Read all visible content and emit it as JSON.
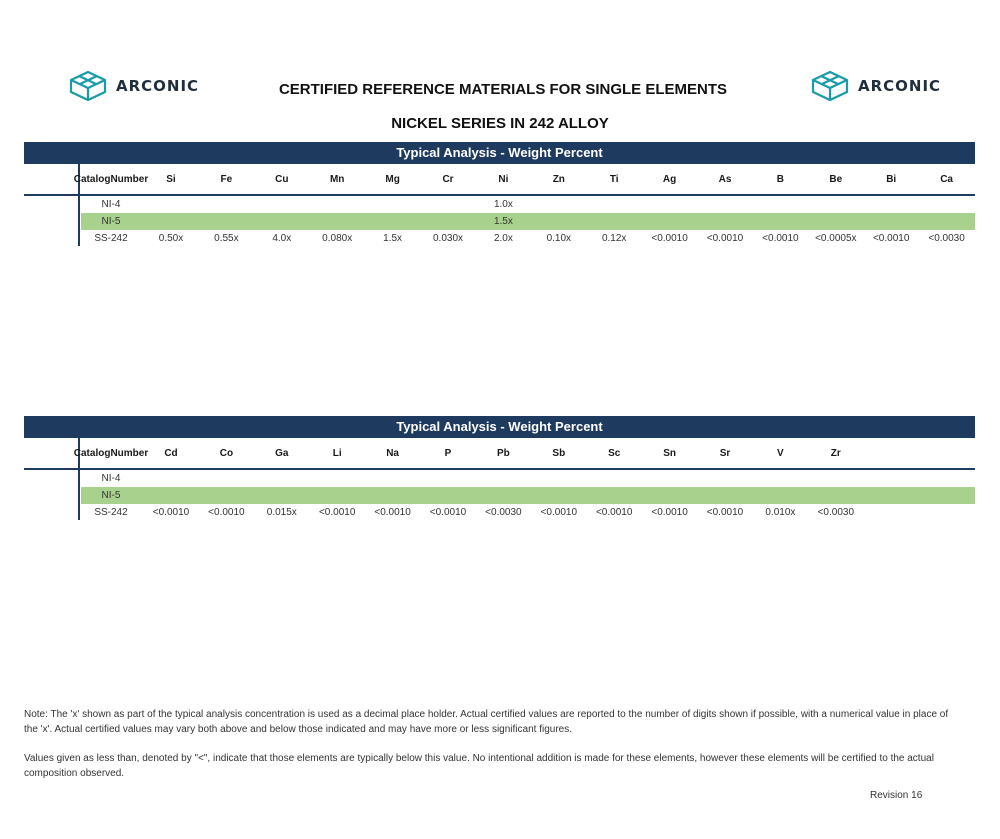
{
  "header": {
    "logo_text": "ARCONIC",
    "title": "CERTIFIED REFERENCE MATERIALS FOR SINGLE ELEMENTS",
    "subtitle": "NICKEL SERIES IN 242 ALLOY"
  },
  "colors": {
    "navy": "#1f3a5f",
    "green_row": "#a9d18e",
    "logo_teal": "#1a9ba8"
  },
  "table1": {
    "band_title": "Typical Analysis - Weight Percent",
    "catalog_header_line1": "Catalog",
    "catalog_header_line2": "Number",
    "columns": [
      "Si",
      "Fe",
      "Cu",
      "Mn",
      "Mg",
      "Cr",
      "Ni",
      "Zn",
      "Ti",
      "Ag",
      "As",
      "B",
      "Be",
      "Bi",
      "Ca"
    ],
    "rows": [
      {
        "catalog": "NI-4",
        "highlight": false,
        "values": [
          "",
          "",
          "",
          "",
          "",
          "",
          "1.0x",
          "",
          "",
          "",
          "",
          "",
          "",
          "",
          ""
        ]
      },
      {
        "catalog": "NI-5",
        "highlight": true,
        "values": [
          "",
          "",
          "",
          "",
          "",
          "",
          "1.5x",
          "",
          "",
          "",
          "",
          "",
          "",
          "",
          ""
        ]
      },
      {
        "catalog": "SS-242",
        "highlight": false,
        "values": [
          "0.50x",
          "0.55x",
          "4.0x",
          "0.080x",
          "1.5x",
          "0.030x",
          "2.0x",
          "0.10x",
          "0.12x",
          "<0.0010",
          "<0.0010",
          "<0.0010",
          "<0.0005x",
          "<0.0010",
          "<0.0030"
        ]
      }
    ]
  },
  "table2": {
    "band_title": "Typical Analysis - Weight Percent",
    "catalog_header_line1": "Catalog",
    "catalog_header_line2": "Number",
    "columns": [
      "Cd",
      "Co",
      "Ga",
      "Li",
      "Na",
      "P",
      "Pb",
      "Sb",
      "Sc",
      "Sn",
      "Sr",
      "V",
      "Zr"
    ],
    "rows": [
      {
        "catalog": "NI-4",
        "highlight": false,
        "values": [
          "",
          "",
          "",
          "",
          "",
          "",
          "",
          "",
          "",
          "",
          "",
          "",
          ""
        ]
      },
      {
        "catalog": "NI-5",
        "highlight": true,
        "values": [
          "",
          "",
          "",
          "",
          "",
          "",
          "",
          "",
          "",
          "",
          "",
          "",
          ""
        ]
      },
      {
        "catalog": "SS-242",
        "highlight": false,
        "values": [
          "<0.0010",
          "<0.0010",
          "0.015x",
          "<0.0010",
          "<0.0010",
          "<0.0010",
          "<0.0030",
          "<0.0010",
          "<0.0010",
          "<0.0010",
          "<0.0010",
          "0.010x",
          "<0.0030"
        ]
      }
    ]
  },
  "notes": {
    "note1": "Note:  The 'x' shown as part of the typical analysis concentration is used as a decimal place holder.  Actual certified values are reported to the number of digits shown if possible, with a numerical value in place of the 'x'.  Actual certified values may vary both above and below those indicated and may have more or less significant figures.",
    "note2": "Values given as less than, denoted by \"<\", indicate that those elements are typically below this value.  No intentional addition is made for these elements, however  these elements will be certified to the actual composition observed."
  },
  "footer": {
    "revision": "Revision 16"
  }
}
